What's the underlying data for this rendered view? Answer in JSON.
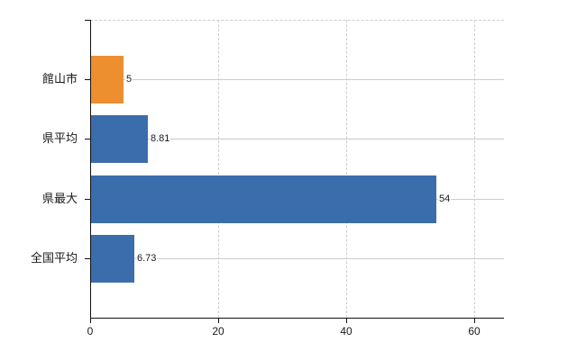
{
  "chart_data": {
    "type": "bar",
    "orientation": "horizontal",
    "title": "",
    "categories": [
      "館山市",
      "県平均",
      "県最大",
      "全国平均"
    ],
    "values": [
      5,
      8.81,
      54,
      6.73
    ],
    "value_labels": [
      "5",
      "8.81",
      "54",
      "6.73"
    ],
    "bar_colors": [
      "#ED8F2F",
      "#3B6DAD",
      "#3B6DAD",
      "#3B6DAD"
    ],
    "series_colors": {
      "highlight": "#ED8F2F",
      "default": "#3B6DAD"
    },
    "x_ticks": [
      0,
      20,
      40,
      60
    ],
    "x_tick_labels": [
      "0",
      "20",
      "40",
      "60"
    ],
    "xlim": [
      0,
      64.6
    ],
    "grid": {
      "vertical": "dashed",
      "horizontal": "solid",
      "legend": "none"
    },
    "colors": {
      "axis": "#111111",
      "grid_dashed": "#cdced6",
      "grid_solid": "#c7cec7",
      "text": "#1a1a1a",
      "background": "#ffffff"
    }
  }
}
